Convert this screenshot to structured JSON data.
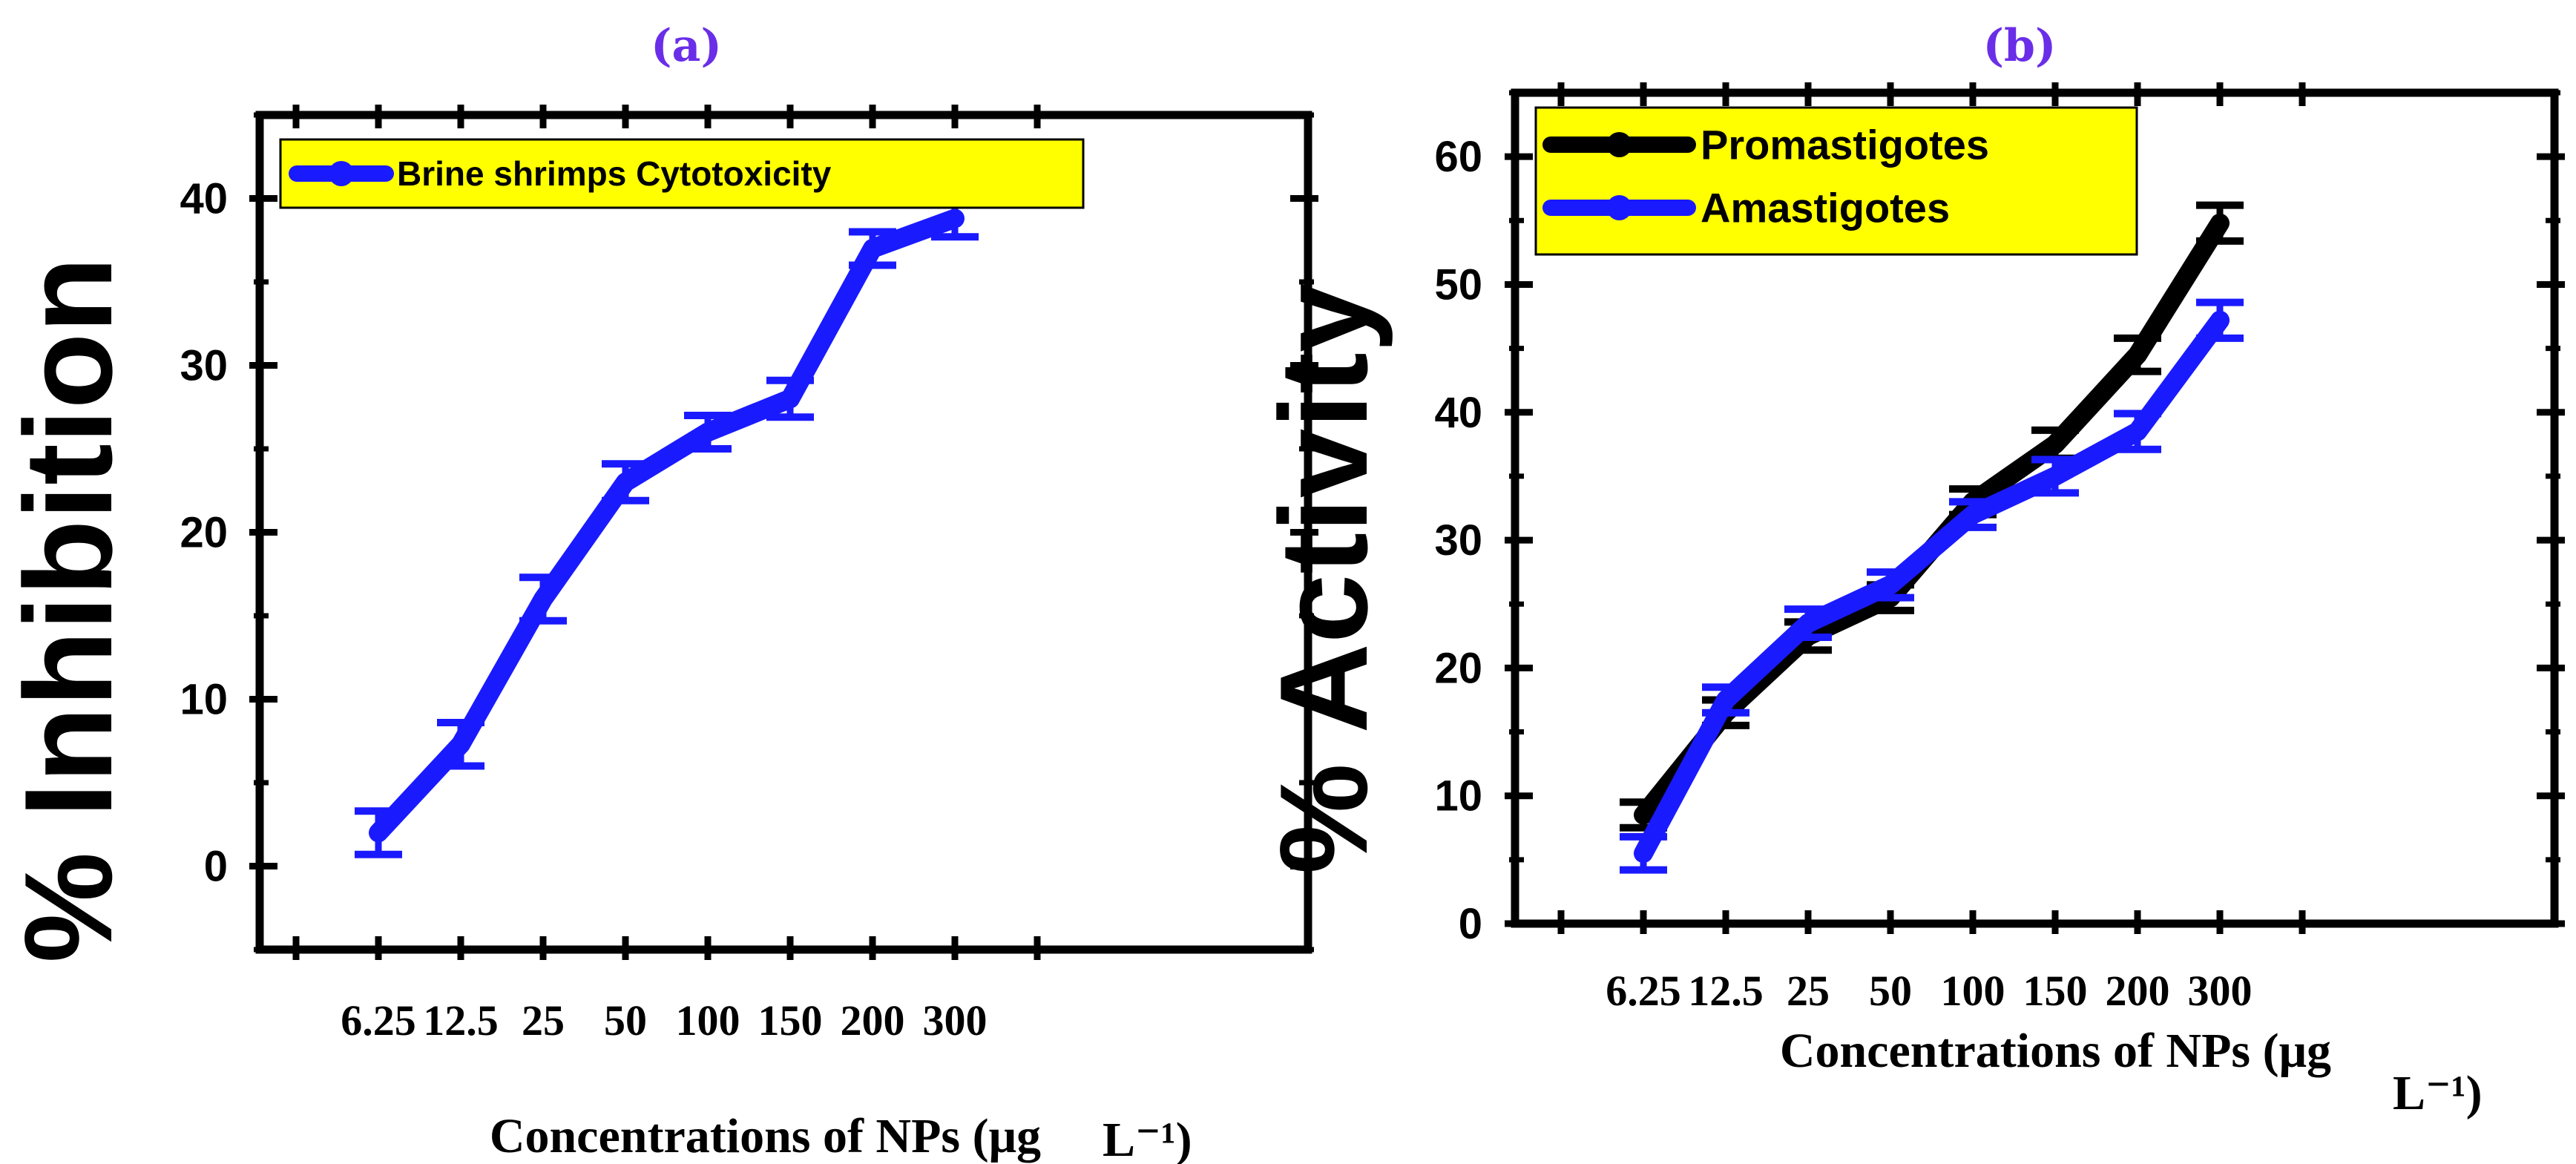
{
  "chart_data": [
    {
      "type": "line",
      "panel_label": "(a)",
      "categories": [
        "6.25",
        "12.5",
        "25",
        "50",
        "100",
        "150",
        "200",
        "300"
      ],
      "series": [
        {
          "name": "Brine shrimps Cytotoxicity",
          "color": "#1a1aff",
          "values": [
            2,
            7.3,
            16,
            23,
            26,
            28,
            37,
            38.8
          ],
          "errors": [
            1.3,
            1.3,
            1.3,
            1.1,
            1.0,
            1.1,
            1.0,
            1.1
          ]
        }
      ],
      "xlabel": "Concentrations of NPs (μg",
      "xlabel_unit": "L⁻¹)",
      "ylabel": "% Inhibition",
      "ylim": [
        -5,
        45
      ],
      "yticks": [
        0,
        10,
        20,
        30,
        40
      ],
      "legend_position": "top-left",
      "legend_bg": "#ffff00"
    },
    {
      "type": "line",
      "panel_label": "(b)",
      "categories": [
        "6.25",
        "12.5",
        "25",
        "50",
        "100",
        "150",
        "200",
        "300"
      ],
      "series": [
        {
          "name": "Promastigotes",
          "color": "#000000",
          "values": [
            8.5,
            16.5,
            22.5,
            25.5,
            33,
            37.5,
            44.5,
            54.8
          ],
          "errors": [
            1.0,
            1.0,
            1.1,
            1.0,
            1.0,
            1.1,
            1.3,
            1.4
          ]
        },
        {
          "name": "Amastigotes",
          "color": "#1a1aff",
          "values": [
            5.5,
            17.5,
            23.5,
            26.5,
            32,
            35,
            38.5,
            47.2
          ],
          "errors": [
            1.3,
            1.0,
            1.1,
            1.0,
            1.0,
            1.3,
            1.4,
            1.4
          ]
        }
      ],
      "xlabel": "Concentrations of NPs (μg",
      "xlabel_unit": "L⁻¹)",
      "ylabel": "% Activity",
      "ylim": [
        0,
        65
      ],
      "yticks": [
        0,
        10,
        20,
        30,
        40,
        50,
        60
      ],
      "legend_position": "top-left",
      "legend_bg": "#ffff00"
    }
  ]
}
